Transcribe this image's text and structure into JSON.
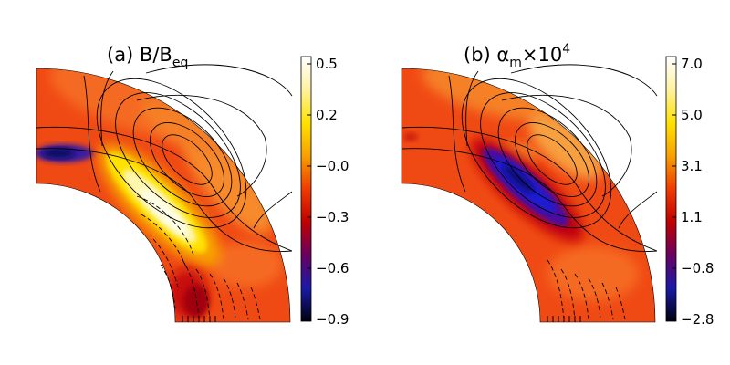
{
  "panels": [
    {
      "id": "a",
      "title_prefix": "(a) B/B",
      "title_subscript": "eq",
      "colorbar": {
        "ticks": [
          "0.5",
          "0.2",
          "−0.0",
          "−0.3",
          "−0.6",
          "−0.9"
        ],
        "gradient": [
          "#ffffff",
          "#fff2a0",
          "#ffe200",
          "#f7a000",
          "#f03c00",
          "#c00000",
          "#6a0060",
          "#1a1aa8",
          "#000010"
        ]
      }
    },
    {
      "id": "b",
      "title_prefix": "(b) α",
      "title_subscript": "m",
      "title_suffix": "×10",
      "title_superscript": "4",
      "colorbar": {
        "ticks": [
          "7.0",
          "5.0",
          "3.1",
          "1.1",
          "−0.8",
          "−2.8"
        ],
        "gradient": [
          "#ffffff",
          "#fff2a0",
          "#ffe200",
          "#f7a000",
          "#f03c00",
          "#c00000",
          "#6a0060",
          "#1a1aa8",
          "#000010"
        ]
      }
    }
  ]
}
